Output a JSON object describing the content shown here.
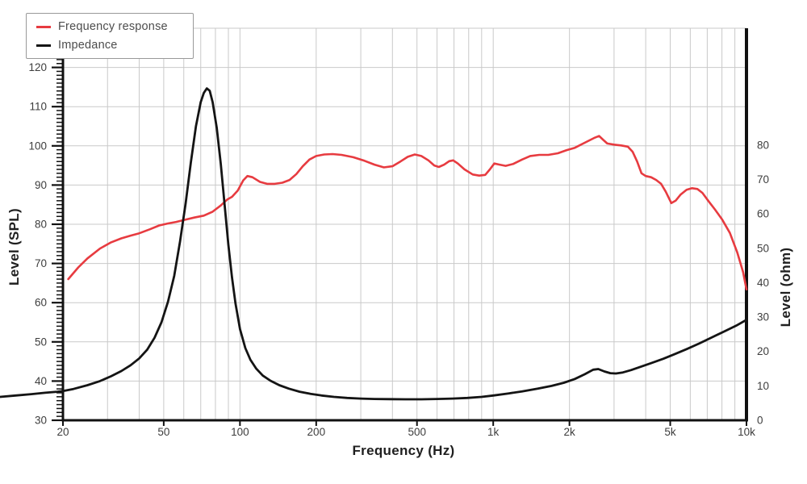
{
  "chart_data": {
    "type": "line",
    "title": "",
    "xlabel": "Frequency (Hz)",
    "ylabel_left": "Level (SPL)",
    "ylabel_right": "Level (ohm)",
    "x_scale": "log",
    "x_range": [
      20,
      10000
    ],
    "y_left_range": [
      30,
      130
    ],
    "y_right_range": [
      0,
      114
    ],
    "grid": true,
    "legend_position": "top-left",
    "colors": {
      "grid": "#c9c9c9",
      "axis": "#111111",
      "tick_text": "#3d3d3d",
      "legend_border": "#999999"
    },
    "x_gridlines": [
      20,
      30,
      40,
      50,
      60,
      70,
      80,
      90,
      100,
      200,
      300,
      400,
      500,
      600,
      700,
      800,
      900,
      1000,
      2000,
      3000,
      4000,
      5000,
      6000,
      7000,
      8000,
      9000,
      10000
    ],
    "x_tick_labels": [
      {
        "value": 20,
        "label": "20"
      },
      {
        "value": 50,
        "label": "50"
      },
      {
        "value": 100,
        "label": "100"
      },
      {
        "value": 200,
        "label": "200"
      },
      {
        "value": 500,
        "label": "500"
      },
      {
        "value": 1000,
        "label": "1k"
      },
      {
        "value": 2000,
        "label": "2k"
      },
      {
        "value": 5000,
        "label": "5k"
      },
      {
        "value": 10000,
        "label": "10k"
      }
    ],
    "y_left_ticks": [
      30,
      40,
      50,
      60,
      70,
      80,
      90,
      100,
      110,
      120
    ],
    "y_left_gridlines": [
      30,
      40,
      50,
      60,
      70,
      80,
      90,
      100,
      110,
      120,
      130
    ],
    "y_right_ticks": [
      0,
      10,
      20,
      30,
      40,
      50,
      60,
      70,
      80
    ],
    "series": [
      {
        "name": "Frequency response",
        "axis": "left",
        "unit": "dB SPL",
        "color": "#e73b40",
        "points": [
          [
            21,
            66
          ],
          [
            23,
            69
          ],
          [
            25,
            71.3
          ],
          [
            28,
            73.8
          ],
          [
            31,
            75.4
          ],
          [
            34,
            76.4
          ],
          [
            37,
            77.1
          ],
          [
            40,
            77.7
          ],
          [
            44,
            78.7
          ],
          [
            48,
            79.7
          ],
          [
            52,
            80.2
          ],
          [
            56,
            80.6
          ],
          [
            61,
            81.2
          ],
          [
            66,
            81.7
          ],
          [
            72,
            82.2
          ],
          [
            78,
            83.2
          ],
          [
            84,
            84.8
          ],
          [
            89,
            86.3
          ],
          [
            93,
            87.0
          ],
          [
            98,
            88.6
          ],
          [
            103,
            91.2
          ],
          [
            107,
            92.3
          ],
          [
            112,
            92.0
          ],
          [
            120,
            90.8
          ],
          [
            128,
            90.3
          ],
          [
            137,
            90.3
          ],
          [
            147,
            90.6
          ],
          [
            157,
            91.3
          ],
          [
            167,
            92.8
          ],
          [
            177,
            94.8
          ],
          [
            188,
            96.5
          ],
          [
            200,
            97.4
          ],
          [
            215,
            97.8
          ],
          [
            232,
            97.9
          ],
          [
            252,
            97.7
          ],
          [
            280,
            97.1
          ],
          [
            310,
            96.2
          ],
          [
            340,
            95.2
          ],
          [
            370,
            94.5
          ],
          [
            400,
            94.8
          ],
          [
            430,
            96.0
          ],
          [
            460,
            97.2
          ],
          [
            490,
            97.8
          ],
          [
            520,
            97.4
          ],
          [
            555,
            96.3
          ],
          [
            585,
            95.0
          ],
          [
            610,
            94.6
          ],
          [
            640,
            95.2
          ],
          [
            670,
            96.1
          ],
          [
            695,
            96.3
          ],
          [
            725,
            95.5
          ],
          [
            770,
            94.0
          ],
          [
            830,
            92.7
          ],
          [
            880,
            92.4
          ],
          [
            930,
            92.6
          ],
          [
            970,
            94.0
          ],
          [
            1010,
            95.5
          ],
          [
            1060,
            95.2
          ],
          [
            1120,
            94.9
          ],
          [
            1200,
            95.4
          ],
          [
            1300,
            96.5
          ],
          [
            1400,
            97.4
          ],
          [
            1520,
            97.7
          ],
          [
            1650,
            97.7
          ],
          [
            1800,
            98.1
          ],
          [
            1950,
            98.9
          ],
          [
            2100,
            99.5
          ],
          [
            2300,
            100.8
          ],
          [
            2500,
            102.0
          ],
          [
            2620,
            102.5
          ],
          [
            2720,
            101.5
          ],
          [
            2820,
            100.6
          ],
          [
            3000,
            100.3
          ],
          [
            3200,
            100.1
          ],
          [
            3400,
            99.8
          ],
          [
            3550,
            98.5
          ],
          [
            3700,
            96.0
          ],
          [
            3850,
            93.0
          ],
          [
            4000,
            92.3
          ],
          [
            4200,
            92.0
          ],
          [
            4400,
            91.3
          ],
          [
            4600,
            90.3
          ],
          [
            4800,
            88.3
          ],
          [
            5050,
            85.4
          ],
          [
            5250,
            86.0
          ],
          [
            5500,
            87.6
          ],
          [
            5800,
            88.8
          ],
          [
            6100,
            89.2
          ],
          [
            6400,
            89.0
          ],
          [
            6700,
            88.0
          ],
          [
            7100,
            85.8
          ],
          [
            7500,
            83.8
          ],
          [
            8000,
            81.3
          ],
          [
            8600,
            77.8
          ],
          [
            9200,
            72.8
          ],
          [
            9700,
            67.8
          ],
          [
            10000,
            63.4
          ]
        ]
      },
      {
        "name": "Impedance",
        "axis": "right",
        "unit": "ohm",
        "color": "#141414",
        "points": [
          [
            11.3,
            6.8
          ],
          [
            13,
            7.2
          ],
          [
            15,
            7.6
          ],
          [
            17,
            8.0
          ],
          [
            19,
            8.3
          ],
          [
            20,
            8.5
          ],
          [
            22,
            9.1
          ],
          [
            25,
            10.2
          ],
          [
            28,
            11.4
          ],
          [
            31,
            12.8
          ],
          [
            34,
            14.3
          ],
          [
            37,
            16.0
          ],
          [
            40,
            18.0
          ],
          [
            43,
            20.5
          ],
          [
            46,
            24.0
          ],
          [
            49,
            28.5
          ],
          [
            52,
            34.5
          ],
          [
            55,
            42.0
          ],
          [
            58,
            52.0
          ],
          [
            61,
            63.0
          ],
          [
            64,
            75.0
          ],
          [
            67,
            85.5
          ],
          [
            70,
            92.5
          ],
          [
            72,
            95.2
          ],
          [
            74,
            96.5
          ],
          [
            76,
            95.8
          ],
          [
            78,
            92.5
          ],
          [
            81,
            85.0
          ],
          [
            84,
            74.5
          ],
          [
            87,
            62.5
          ],
          [
            90,
            51.0
          ],
          [
            93,
            41.5
          ],
          [
            96,
            34.0
          ],
          [
            100,
            26.5
          ],
          [
            105,
            21.0
          ],
          [
            110,
            17.6
          ],
          [
            116,
            15.0
          ],
          [
            123,
            13.0
          ],
          [
            132,
            11.5
          ],
          [
            143,
            10.2
          ],
          [
            156,
            9.2
          ],
          [
            172,
            8.3
          ],
          [
            190,
            7.7
          ],
          [
            210,
            7.2
          ],
          [
            235,
            6.8
          ],
          [
            265,
            6.5
          ],
          [
            300,
            6.3
          ],
          [
            340,
            6.2
          ],
          [
            390,
            6.15
          ],
          [
            450,
            6.1
          ],
          [
            520,
            6.1
          ],
          [
            600,
            6.2
          ],
          [
            690,
            6.3
          ],
          [
            790,
            6.5
          ],
          [
            900,
            6.8
          ],
          [
            1000,
            7.2
          ],
          [
            1150,
            7.8
          ],
          [
            1300,
            8.4
          ],
          [
            1500,
            9.2
          ],
          [
            1700,
            10.0
          ],
          [
            1900,
            10.9
          ],
          [
            2100,
            12.0
          ],
          [
            2300,
            13.4
          ],
          [
            2480,
            14.7
          ],
          [
            2600,
            14.9
          ],
          [
            2750,
            14.2
          ],
          [
            2900,
            13.7
          ],
          [
            3050,
            13.6
          ],
          [
            3250,
            13.9
          ],
          [
            3500,
            14.6
          ],
          [
            3800,
            15.5
          ],
          [
            4200,
            16.6
          ],
          [
            4700,
            17.9
          ],
          [
            5200,
            19.2
          ],
          [
            5800,
            20.7
          ],
          [
            6500,
            22.3
          ],
          [
            7300,
            24.1
          ],
          [
            8200,
            25.9
          ],
          [
            9100,
            27.5
          ],
          [
            10000,
            29.2
          ]
        ]
      }
    ]
  }
}
